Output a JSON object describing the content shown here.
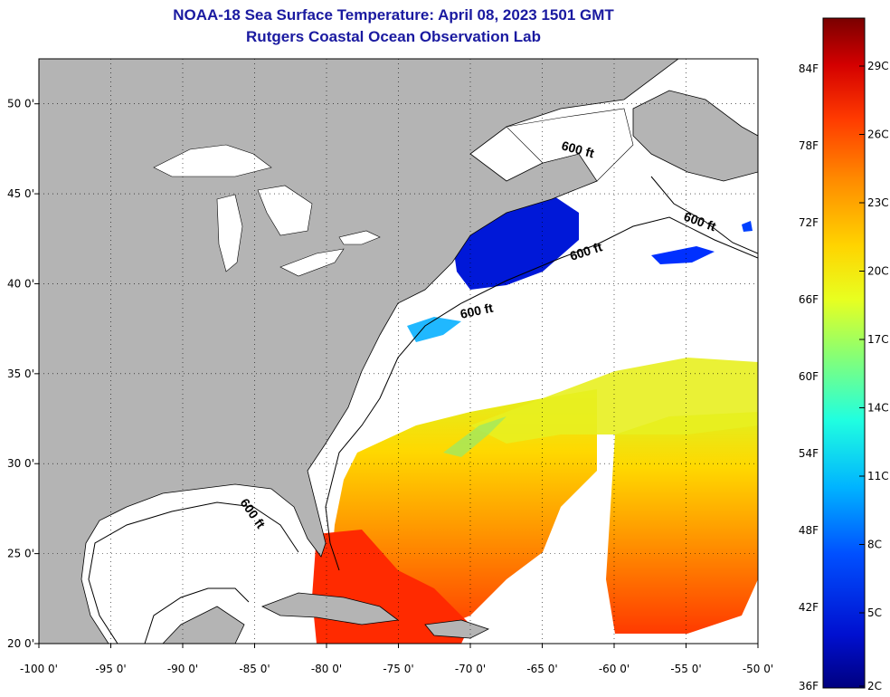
{
  "title": "NOAA-18 Sea Surface Temperature:  April 08, 2023 1501 GMT",
  "subtitle": "Rutgers Coastal Ocean Observation Lab",
  "axes": {
    "lon_ticks": [
      "-100 0'",
      "-95 0'",
      "-90 0'",
      "-85 0'",
      "-80 0'",
      "-75 0'",
      "-70 0'",
      "-65 0'",
      "-60 0'",
      "-55 0'",
      "-50 0'"
    ],
    "lat_ticks": [
      "50 0'",
      "45 0'",
      "40 0'",
      "35 0'",
      "30 0'",
      "25 0'",
      "20 0'"
    ],
    "lon_range": [
      -100,
      -50
    ],
    "lat_range": [
      20,
      52.5
    ]
  },
  "isobath_label": "600 ft",
  "colorbar": {
    "fahrenheit": [
      "84F",
      "78F",
      "72F",
      "66F",
      "60F",
      "54F",
      "48F",
      "42F",
      "36F"
    ],
    "celsius": [
      "29C",
      "26C",
      "23C",
      "20C",
      "17C",
      "14C",
      "11C",
      "8C",
      "5C",
      "2C"
    ],
    "colors": [
      "#7a0000",
      "#d40000",
      "#ff3a00",
      "#ff8a00",
      "#ffd400",
      "#e8ff20",
      "#8cff70",
      "#20ffe0",
      "#00b4ff",
      "#0050ff",
      "#0010d0",
      "#000080"
    ]
  },
  "colors": {
    "land": "#b4b4b4",
    "ocean_no_data": "#ffffff",
    "title": "#1a1aa0"
  }
}
